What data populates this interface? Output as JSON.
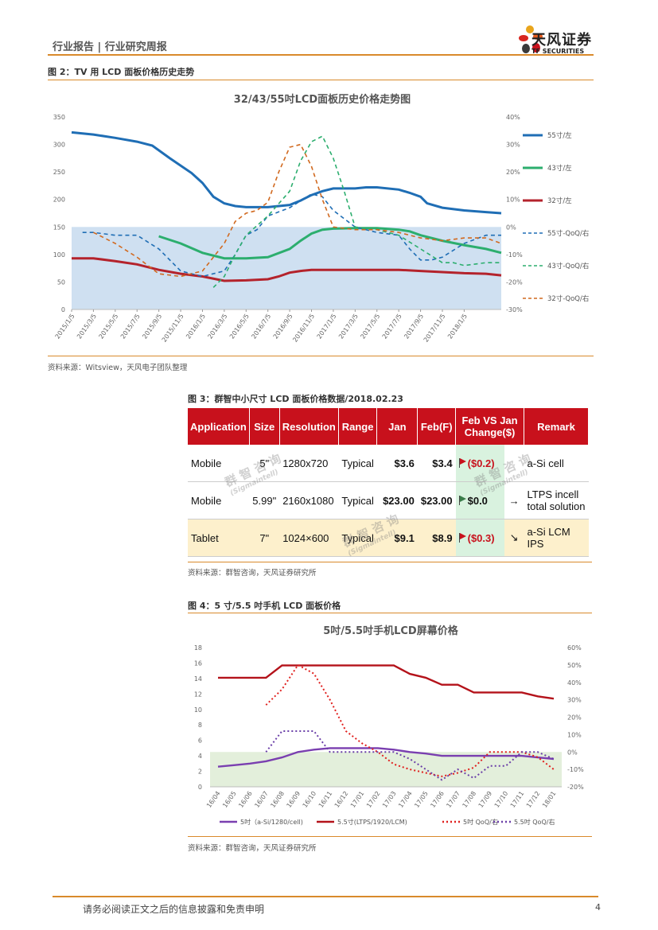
{
  "header": {
    "section": "行业报告 | 行业研究周报",
    "logo_cn": "天风证券",
    "logo_en": "TF SECURITIES"
  },
  "figure2": {
    "caption": "图 2：TV 用 LCD 面板价格历史走势",
    "source": "资料来源：Witsview，天风电子团队整理",
    "chart_data": {
      "type": "line",
      "title": "32/43/55吋LCD面板历史价格走势图",
      "categories": [
        "2015/1/5",
        "2015/3/5",
        "2015/5/5",
        "2015/7/5",
        "2015/9/5",
        "2015/11/5",
        "2016/1/5",
        "2016/3/5",
        "2016/5/5",
        "2016/7/5",
        "2016/9/5",
        "2016/11/5",
        "2017/1/5",
        "2017/3/5",
        "2017/5/5",
        "2017/7/5",
        "2017/9/5",
        "2017/11/5",
        "2018/1/5"
      ],
      "x_index": [
        0,
        1,
        2,
        3,
        4,
        5,
        6,
        7,
        8,
        9,
        10,
        11,
        12,
        13,
        14,
        15,
        16,
        17,
        18,
        19.7
      ],
      "ylim_left": [
        0,
        350
      ],
      "yticks_left": [
        "0",
        "50",
        "100",
        "150",
        "200",
        "250",
        "300",
        "350"
      ],
      "ylim_right": [
        -30,
        40
      ],
      "yticks_right": [
        "-30%",
        "-20%",
        "-10%",
        "0%",
        "10%",
        "20%",
        "30%",
        "40%"
      ],
      "shaded_band_left": [
        0,
        150
      ],
      "series": [
        {
          "name": "55寸/左",
          "axis": "left",
          "color": "#1f6eb5",
          "dash": false,
          "x": [
            0,
            1,
            2,
            3,
            3.7,
            4.5,
            5.5,
            6,
            6.5,
            7,
            7.5,
            8,
            9,
            10,
            10.5,
            11,
            11.5,
            12,
            13,
            13.5,
            14,
            15,
            15.5,
            16,
            16.3,
            17,
            18,
            19,
            19.7
          ],
          "y": [
            322,
            318,
            312,
            305,
            298,
            275,
            248,
            230,
            205,
            193,
            188,
            186,
            186,
            190,
            198,
            208,
            215,
            220,
            220,
            222,
            222,
            218,
            212,
            205,
            193,
            185,
            180,
            177,
            175
          ]
        },
        {
          "name": "43寸/左",
          "axis": "left",
          "color": "#2cae6e",
          "dash": false,
          "x": [
            4,
            5,
            6,
            7,
            8,
            9,
            10,
            10.5,
            11,
            11.5,
            12,
            13,
            14,
            15,
            15.5,
            16,
            17,
            18,
            19,
            19.7
          ],
          "y": [
            133,
            120,
            103,
            93,
            93,
            95,
            110,
            125,
            138,
            145,
            147,
            148,
            148,
            145,
            142,
            135,
            125,
            117,
            110,
            103
          ]
        },
        {
          "name": "32寸/左",
          "axis": "left",
          "color": "#b4232c",
          "dash": false,
          "x": [
            0,
            1,
            2,
            3,
            4,
            5,
            6,
            7,
            8,
            9,
            9.5,
            10,
            10.5,
            11,
            12,
            13,
            14,
            15,
            16,
            17,
            18,
            19,
            19.7
          ],
          "y": [
            93,
            93,
            88,
            82,
            72,
            65,
            60,
            52,
            53,
            55,
            60,
            67,
            70,
            72,
            72,
            72,
            72,
            72,
            70,
            68,
            66,
            65,
            62
          ]
        },
        {
          "name": "55寸-QoQ/右",
          "axis": "right",
          "color": "#1f6eb5",
          "dash": true,
          "x": [
            0.5,
            1,
            2,
            3,
            4,
            5,
            6,
            7,
            7.5,
            8,
            8.5,
            9,
            10,
            11,
            11.5,
            12,
            13,
            14,
            15,
            15.5,
            16,
            16.5,
            17,
            18,
            19,
            19.7
          ],
          "y": [
            -2,
            -2,
            -3,
            -3,
            -8,
            -16,
            -18,
            -16,
            -10,
            -3,
            -1,
            4,
            7,
            12,
            11,
            6,
            0,
            -2,
            -3,
            -8,
            -12,
            -12,
            -11,
            -6,
            -3,
            -3
          ]
        },
        {
          "name": "43寸-QoQ/右",
          "axis": "right",
          "color": "#2cae6e",
          "dash": true,
          "x": [
            6.5,
            7,
            7.5,
            8,
            9,
            10,
            10.5,
            11,
            11.5,
            12,
            12.5,
            13,
            14,
            15,
            16,
            17,
            17.5,
            18,
            19,
            19.7
          ],
          "y": [
            -22,
            -18,
            -10,
            -3,
            4,
            13,
            24,
            31,
            33,
            25,
            13,
            0,
            -1,
            -3,
            -8,
            -13,
            -13,
            -14,
            -13,
            -13
          ]
        },
        {
          "name": "32寸-QoQ/右",
          "axis": "right",
          "color": "#d1691f",
          "dash": true,
          "x": [
            1,
            2,
            3,
            4,
            5,
            6,
            6.5,
            7,
            7.5,
            8,
            8.5,
            9,
            9.5,
            10,
            10.5,
            11,
            11.5,
            12,
            13,
            14,
            15,
            16,
            17,
            18,
            19,
            19.7
          ],
          "y": [
            -2,
            -6,
            -11,
            -17,
            -18,
            -16,
            -11,
            -6,
            2,
            5,
            6,
            9,
            20,
            29,
            30,
            22,
            10,
            0,
            -1,
            -1,
            -2,
            -4,
            -5,
            -4,
            -4,
            -6
          ]
        }
      ]
    }
  },
  "figure3": {
    "caption": "图 3：群智中小尺寸 LCD 面板价格数据/2018.02.23",
    "source": "资料来源：群智咨询，天风证券研究所",
    "watermark": {
      "cn": "群 智 咨 询",
      "en": "(Sigmaintell)"
    },
    "headers": [
      "Application",
      "Size",
      "Resolution",
      "Range",
      "Jan",
      "Feb(F)",
      "Feb VS Jan Change($)",
      "",
      "Remark"
    ],
    "rows": [
      {
        "application": "Mobile",
        "size": "5\"",
        "resolution": "1280x720",
        "range": "Typical",
        "jan": "$3.6",
        "feb": "$3.4",
        "change": "($0.2)",
        "trend": "",
        "remark": "a-Si cell"
      },
      {
        "application": "Mobile",
        "size": "5.99\"",
        "resolution": "2160x1080",
        "range": "Typical",
        "jan": "$23.00",
        "feb": "$23.00",
        "change": "$0.0",
        "trend": "→",
        "remark": "LTPS incell total solution"
      },
      {
        "application": "Tablet",
        "size": "7\"",
        "resolution": "1024×600",
        "range": "Typical",
        "jan": "$9.1",
        "feb": "$8.9",
        "change": "($0.3)",
        "trend": "↘",
        "remark": "a-Si LCM IPS"
      }
    ]
  },
  "figure4": {
    "caption": "图 4：5 寸/5.5 吋手机 LCD 面板价格",
    "source": "资料来源：群智咨询，天风证券研究所",
    "chart_data": {
      "type": "line",
      "title": "5吋/5.5吋手机LCD屏幕价格",
      "categories": [
        "16/04",
        "16/05",
        "16/06",
        "16/07",
        "16/08",
        "16/09",
        "16/10",
        "16/11",
        "16/12",
        "17/01",
        "17/02",
        "17/03",
        "17/04",
        "17/05",
        "17/06",
        "17/07",
        "17/08",
        "17/09",
        "17/10",
        "17/11",
        "17/12",
        "18/01"
      ],
      "ylim_left": [
        0,
        18
      ],
      "yticks_left": [
        "0",
        "2",
        "4",
        "6",
        "8",
        "10",
        "12",
        "14",
        "16",
        "18"
      ],
      "ylim_right": [
        -20,
        60
      ],
      "yticks_right": [
        "-20%",
        "-10%",
        "0%",
        "10%",
        "20%",
        "30%",
        "40%",
        "50%",
        "60%"
      ],
      "shaded_band_left": [
        0,
        4.5
      ],
      "series": [
        {
          "name": "5吋（a-Si/1280/cell)",
          "axis": "left",
          "color": "#7a3fb0",
          "dash": false,
          "values": [
            2.6,
            2.8,
            3.0,
            3.3,
            3.8,
            4.5,
            4.8,
            5.0,
            5.0,
            5.0,
            5.0,
            4.8,
            4.5,
            4.3,
            4.0,
            4.0,
            4.0,
            4.0,
            4.0,
            4.0,
            3.8,
            3.6
          ]
        },
        {
          "name": "5.5寸(LTPS/1920/LCM)",
          "axis": "left",
          "color": "#b4121a",
          "dash": false,
          "values": [
            14.1,
            14.1,
            14.1,
            14.1,
            15.7,
            15.7,
            15.7,
            15.7,
            15.7,
            15.7,
            15.7,
            15.7,
            14.6,
            14.1,
            13.2,
            13.2,
            12.2,
            12.2,
            12.2,
            12.2,
            11.7,
            11.4
          ]
        },
        {
          "name": "5吋 QoQ/右",
          "axis": "right",
          "color": "#e0201e",
          "dash": true,
          "values": [
            null,
            null,
            null,
            27,
            36,
            50,
            45,
            30,
            12,
            5,
            0,
            -7,
            -10,
            -12,
            -14,
            -12,
            -9,
            0,
            0,
            0,
            -3,
            -10
          ]
        },
        {
          "name": "5.5吋 QoQ/右",
          "axis": "right",
          "color": "#6b3fa8",
          "dash": true,
          "values": [
            null,
            null,
            null,
            0,
            12,
            12,
            12,
            0,
            0,
            0,
            0,
            0,
            -4,
            -10,
            -16,
            -10,
            -15,
            -8,
            -8,
            0,
            0,
            -4
          ]
        }
      ]
    }
  },
  "footer": {
    "disclaimer": "请务必阅读正文之后的信息披露和免责申明",
    "page_number": "4"
  }
}
